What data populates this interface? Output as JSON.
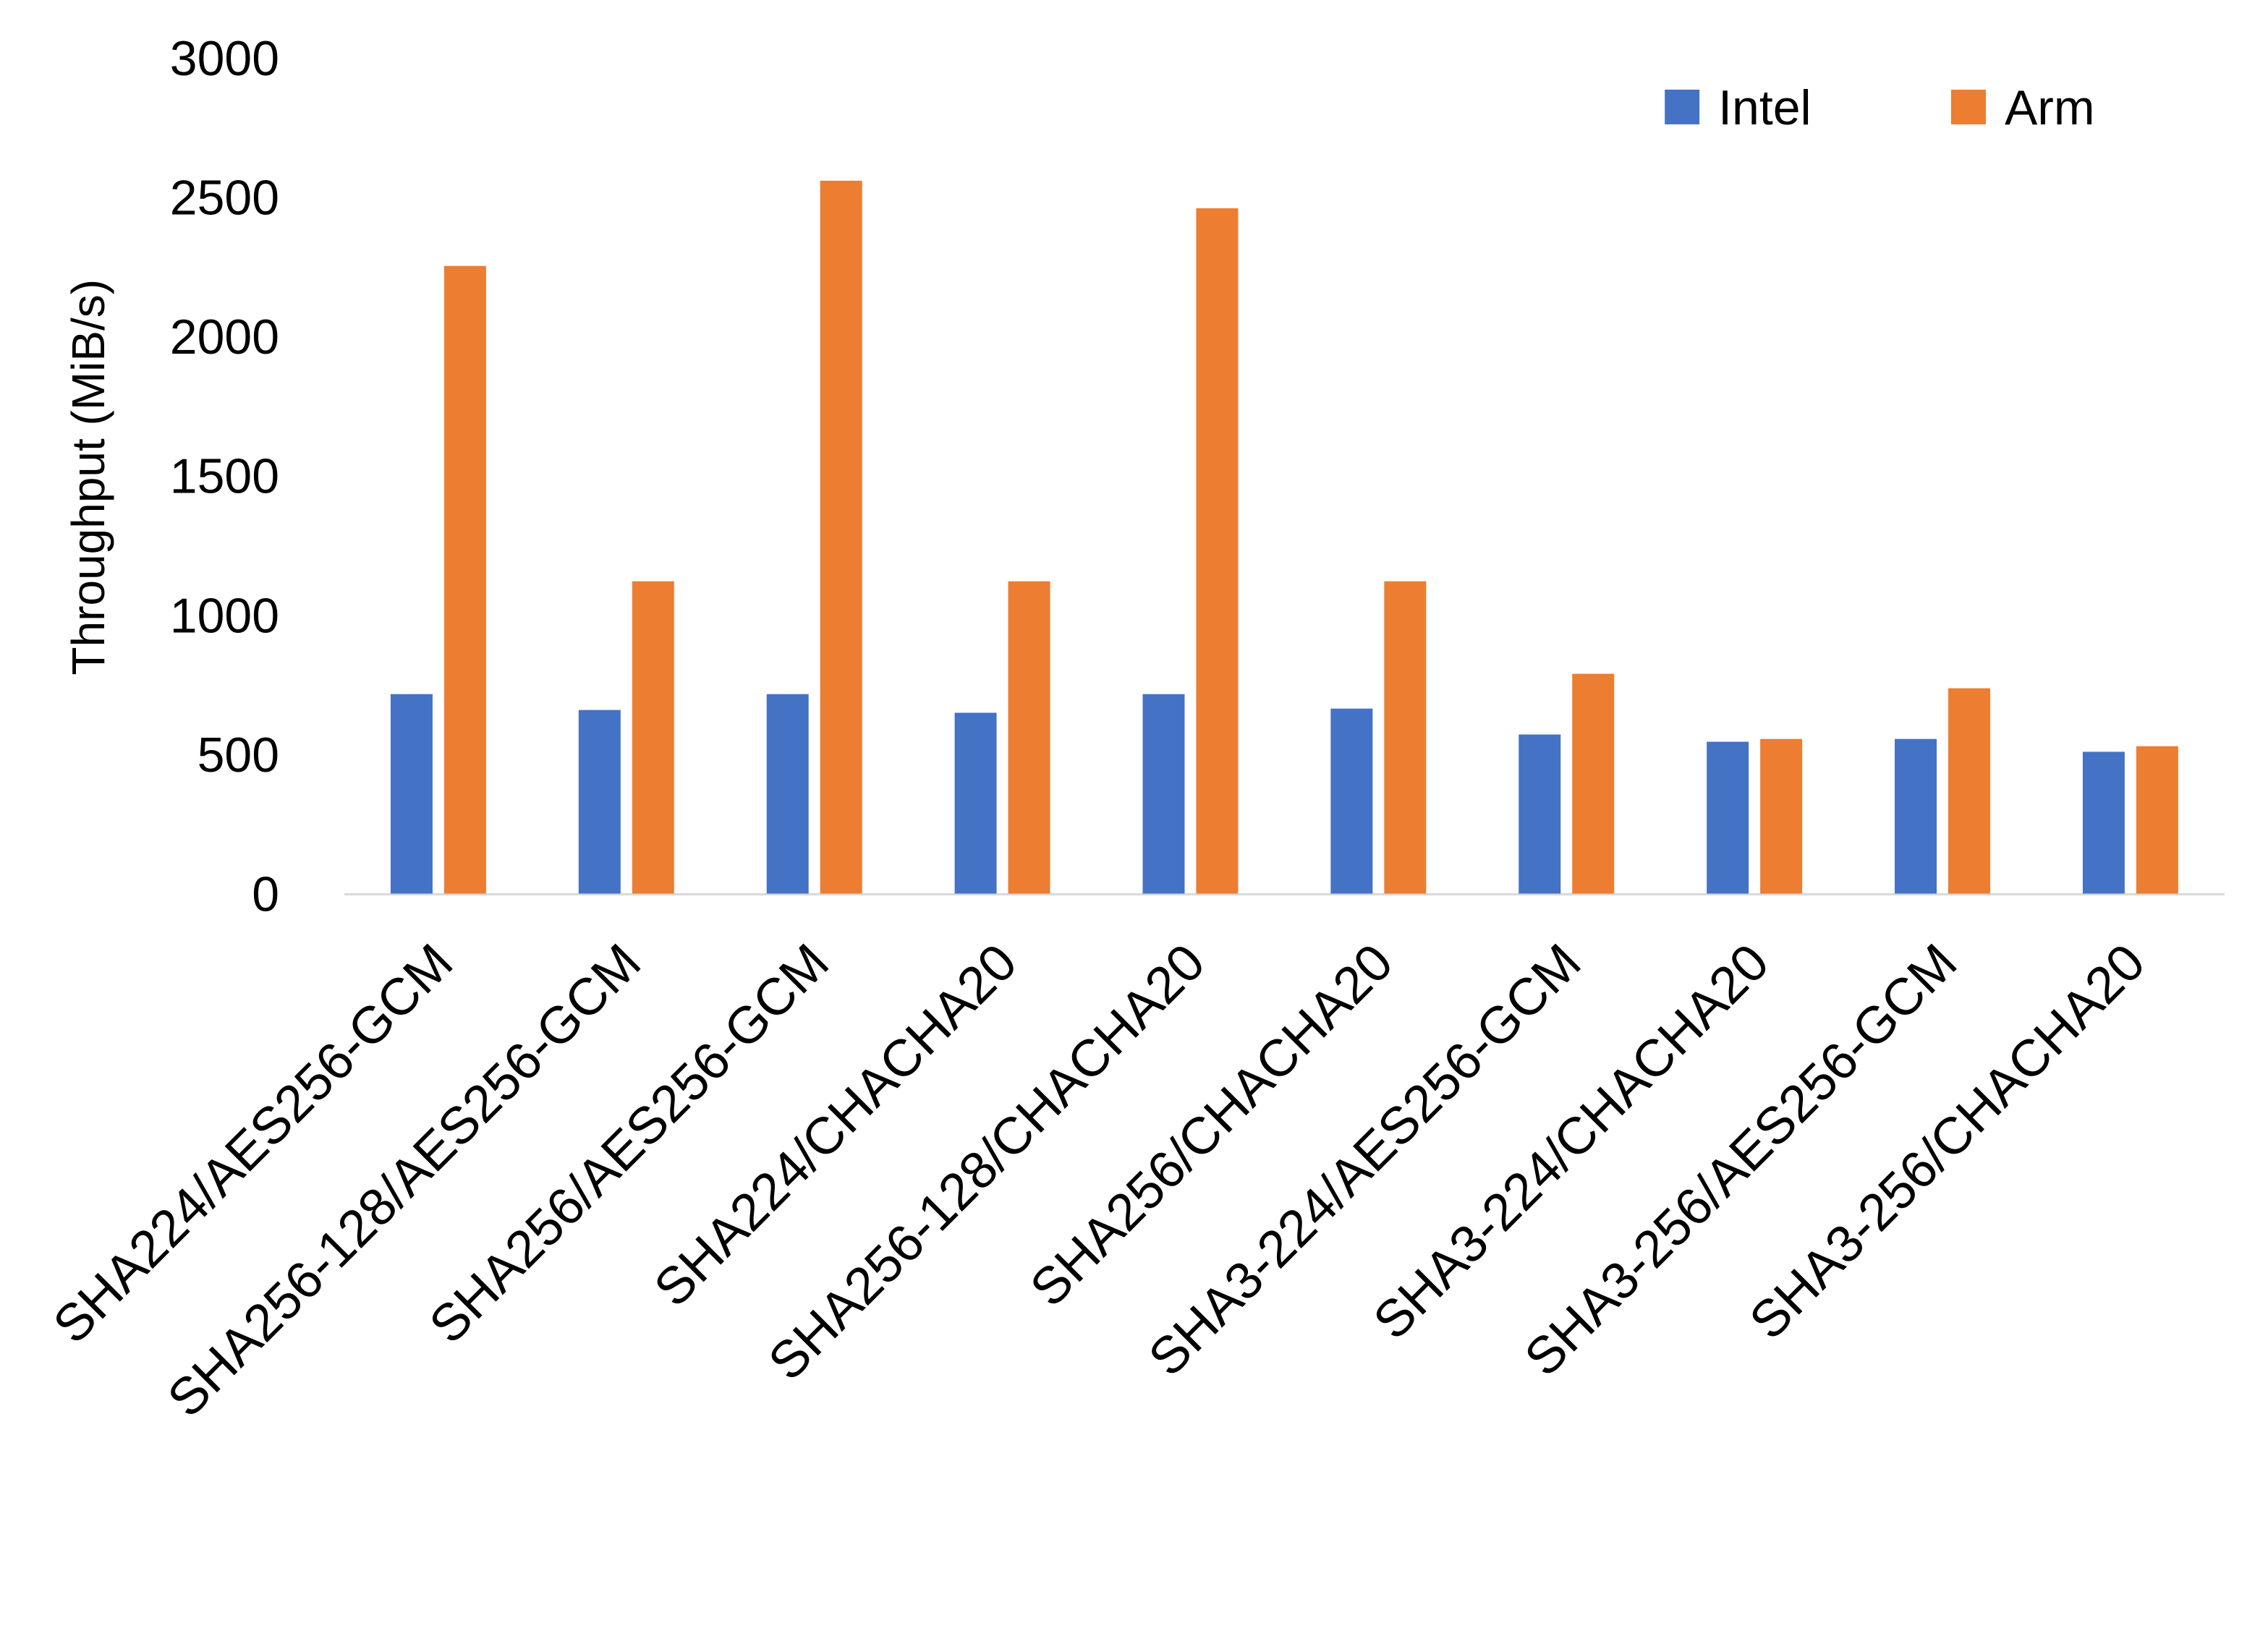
{
  "chart_data": {
    "type": "bar",
    "title": "",
    "xlabel": "",
    "ylabel": "Throughput (MiB/s)",
    "ylim": [
      0,
      3000
    ],
    "yticks": [
      0,
      500,
      1000,
      1500,
      2000,
      2500,
      3000
    ],
    "grid": false,
    "legend_position": "top-right",
    "categories": [
      "SHA224/AES256-GCM",
      "SHA256-128/AES256-GCM",
      "SHA256/AES256-GCM",
      "SHA224/CHACHA20",
      "SHA256-128/CHACHA20",
      "SHA256/CHACHA20",
      "SHA3-224/AES256-GCM",
      "SHA3-224/CHACHA20",
      "SHA3-256/AES256-GCM",
      "SHA3-256/CHACHA20"
    ],
    "series": [
      {
        "name": "Intel",
        "color": "#4472C4",
        "values": [
          716,
          659,
          716,
          649,
          716,
          664,
          571,
          545,
          555,
          509
        ]
      },
      {
        "name": "Arm",
        "color": "#ED7D31",
        "values": [
          2253,
          1121,
          2559,
          1121,
          2460,
          1121,
          789,
          555,
          737,
          529
        ]
      }
    ]
  }
}
